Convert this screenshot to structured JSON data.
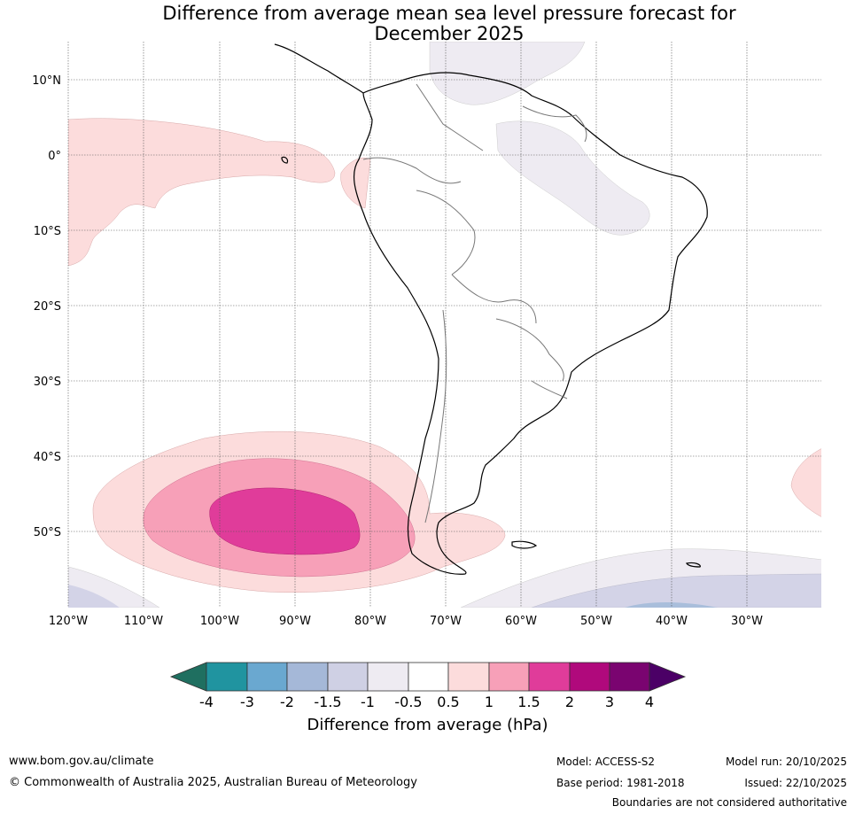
{
  "title_line1": "Difference from average mean sea level pressure forecast for",
  "title_line2": "December 2025",
  "lat_labels": [
    "10°N",
    "0°",
    "10°S",
    "20°S",
    "30°S",
    "40°S",
    "50°S"
  ],
  "lon_labels": [
    "120°W",
    "110°W",
    "100°W",
    "90°W",
    "80°W",
    "70°W",
    "60°W",
    "50°W",
    "40°W",
    "30°W"
  ],
  "colorbar": {
    "label": "Difference from average (hPa)",
    "ticks": [
      "-4",
      "-3",
      "-2",
      "-1.5",
      "-1",
      "-0.5",
      "0.5",
      "1",
      "1.5",
      "2",
      "3",
      "4"
    ],
    "colors": [
      "#1f6f60",
      "#2094a0",
      "#6aa8d0",
      "#a5b8d8",
      "#cfd0e4",
      "#eeebf2",
      "#ffffff",
      "#fcdcdc",
      "#f7a0b8",
      "#e03c9a",
      "#b0097c",
      "#7a0470",
      "#4b0066"
    ]
  },
  "footer": {
    "website": "www.bom.gov.au/climate",
    "copyright": "© Commonwealth of Australia 2025, Australian Bureau of Meteorology",
    "model": "Model: ACCESS-S2",
    "base_period": "Base period: 1981-2018",
    "model_run": "Model run: 20/10/2025",
    "issued": "Issued: 22/10/2025",
    "boundaries": "Boundaries are not considered authoritative"
  }
}
